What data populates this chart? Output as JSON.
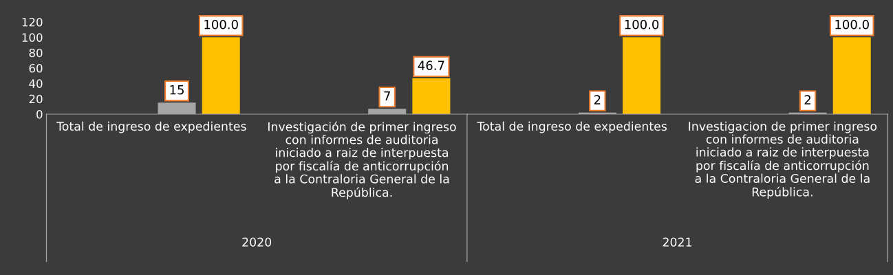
{
  "chart_data": {
    "type": "bar",
    "categories": [
      "Total de ingreso de expedientes",
      "Investigación de primer ingreso con informes de auditoria iniciado a raiz de interpuesta por fiscalía de anticorrupción a la Contraloria General de la República.",
      "Total de ingreso de expedientes",
      "Investigacion de primer ingreso con informes de auditoria iniciado a raiz de interpuesta por fiscalía de anticorrupción a la Contraloria General de la República."
    ],
    "series": [
      {
        "color": "#a6a6a6",
        "values": [
          15,
          7,
          2,
          2
        ],
        "value_labels": [
          "15",
          "7",
          "2",
          "2"
        ]
      },
      {
        "color": "#ffc000",
        "values": [
          100.0,
          46.7,
          100.0,
          100.0
        ],
        "value_labels": [
          "100.0",
          "46.7",
          "100.0",
          "100.0"
        ]
      }
    ],
    "annotations": [
      "2020",
      "2021"
    ],
    "ylim": [
      0,
      120
    ],
    "yticks": [
      0,
      20,
      40,
      60,
      80,
      100,
      120
    ],
    "grid": false,
    "legend": false
  }
}
